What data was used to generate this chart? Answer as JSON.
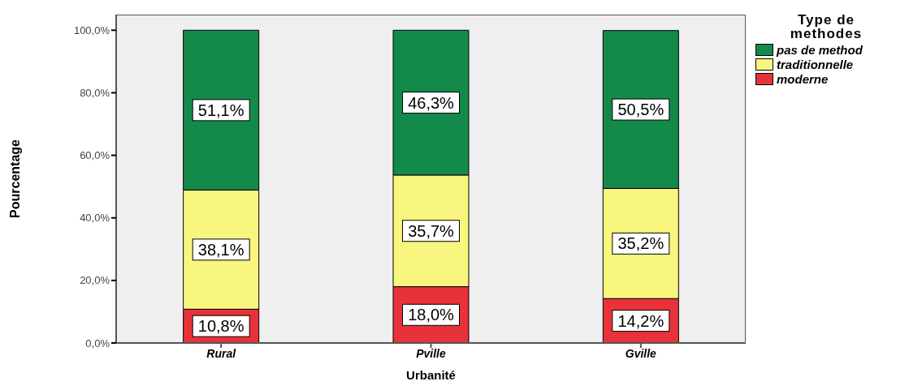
{
  "chart_data": {
    "type": "bar",
    "stacked": true,
    "xlabel": "Urbanité",
    "ylabel": "Pourcentage",
    "legend_title": "Type de methodes",
    "legend": "top right",
    "categories": [
      "Rural",
      "Pville",
      "Gville"
    ],
    "series": [
      {
        "name": "moderne",
        "color": "#e8323a",
        "values": [
          10.8,
          18.0,
          14.2
        ],
        "value_labels": [
          "10,8%",
          "18,0%",
          "14,2%"
        ]
      },
      {
        "name": "traditionnelle",
        "color": "#f8f67e",
        "values": [
          38.1,
          35.7,
          35.2
        ],
        "value_labels": [
          "38,1%",
          "35,7%",
          "35,2%"
        ]
      },
      {
        "name": "pas de method",
        "color": "#138a4a",
        "values": [
          51.1,
          46.3,
          50.5
        ],
        "value_labels": [
          "51,1%",
          "46,3%",
          "50,5%"
        ]
      }
    ],
    "ylim": [
      0,
      105
    ],
    "yticks": [
      {
        "value": 0,
        "label": "0,0%"
      },
      {
        "value": 20,
        "label": "20,0%"
      },
      {
        "value": 40,
        "label": "40,0%"
      },
      {
        "value": 60,
        "label": "60,0%"
      },
      {
        "value": 80,
        "label": "80,0%"
      },
      {
        "value": 100,
        "label": "100,0%"
      }
    ],
    "grid": false
  }
}
